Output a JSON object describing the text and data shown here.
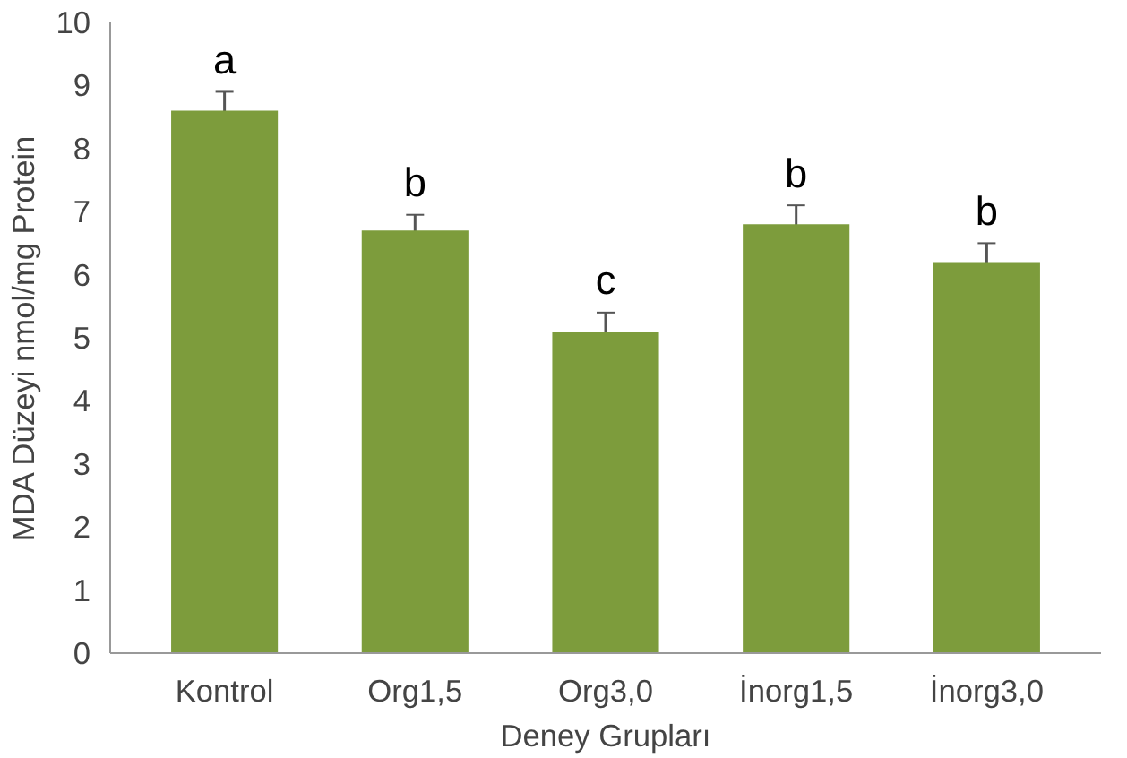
{
  "chart_data": {
    "type": "bar",
    "xlabel": "Deney Grupları",
    "ylabel": "MDA Düzeyi nmol/mg Protein",
    "categories": [
      "Kontrol",
      "Org1,5",
      "Org3,0",
      "İnorg1,5",
      "İnorg3,0"
    ],
    "values": [
      8.6,
      6.7,
      5.1,
      6.8,
      6.2
    ],
    "errors": [
      0.3,
      0.25,
      0.3,
      0.3,
      0.3
    ],
    "color": "#7d9c3c",
    "ylim": [
      0,
      10
    ],
    "yticks": [
      0,
      1,
      2,
      3,
      4,
      5,
      6,
      7,
      8,
      9,
      10
    ],
    "grid": false,
    "annotations": [
      "a",
      "b",
      "c",
      "b",
      "b"
    ]
  }
}
